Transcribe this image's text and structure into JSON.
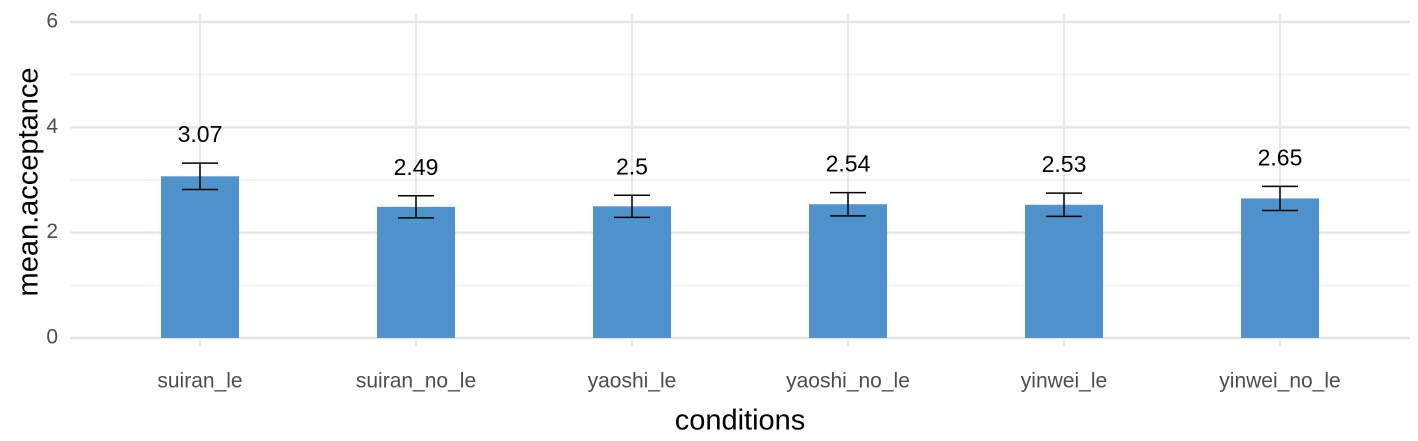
{
  "chart_data": {
    "type": "bar",
    "x_label": "conditions",
    "y_label": "mean.acceptance",
    "categories": [
      "suiran_le",
      "suiran_no_le",
      "yaoshi_le",
      "yaoshi_no_le",
      "yinwei_le",
      "yinwei_no_le"
    ],
    "values": [
      3.07,
      2.49,
      2.5,
      2.54,
      2.53,
      2.65
    ],
    "errors": [
      0.25,
      0.21,
      0.21,
      0.22,
      0.22,
      0.23
    ],
    "color": "#4f93cc",
    "ylim": [
      0,
      6
    ],
    "yticks": [
      0,
      2,
      4,
      6
    ],
    "yminor": [
      1,
      3,
      5
    ],
    "grid": true
  }
}
